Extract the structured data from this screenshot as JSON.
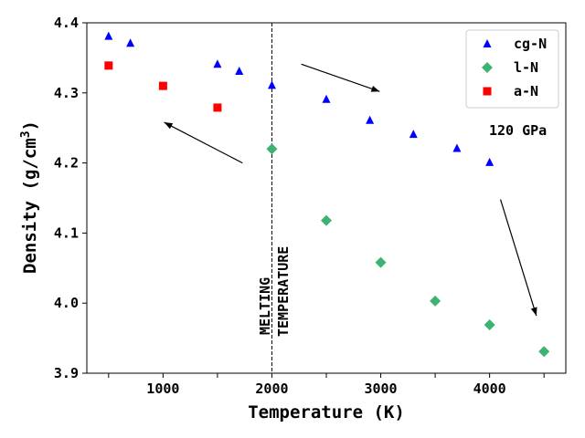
{
  "chart_data": {
    "type": "scatter",
    "title": "",
    "xlabel": "Temperature (K)",
    "ylabel_main": "Density (g/cm",
    "ylabel_sup": "3",
    "ylabel_close": ")",
    "xlim": [
      300,
      4700
    ],
    "ylim": [
      3.9,
      4.4
    ],
    "xticks": [
      500,
      1000,
      1500,
      2000,
      2500,
      3000,
      3500,
      4000,
      4500
    ],
    "xtick_labels": [
      "",
      "1000",
      "",
      "2000",
      "",
      "3000",
      "",
      "4000",
      ""
    ],
    "yticks": [
      3.9,
      4.0,
      4.1,
      4.2,
      4.3,
      4.4
    ],
    "ytick_labels": [
      "3.9",
      "4.0",
      "4.1",
      "4.2",
      "4.3",
      "4.4"
    ],
    "grid": false,
    "legend_position": "top-right",
    "series": [
      {
        "name": "cg-N",
        "marker": "triangle",
        "color": "#0000ff",
        "x": [
          500,
          700,
          1500,
          1700,
          2000,
          2500,
          2900,
          3300,
          3700,
          4000
        ],
        "y": [
          4.381,
          4.371,
          4.341,
          4.331,
          4.311,
          4.291,
          4.261,
          4.241,
          4.221,
          4.201
        ]
      },
      {
        "name": "l-N",
        "marker": "diamond",
        "color": "#3cb371",
        "x": [
          2000,
          2500,
          3000,
          3500,
          4000,
          4500
        ],
        "y": [
          4.22,
          4.118,
          4.058,
          4.003,
          3.969,
          3.931
        ]
      },
      {
        "name": "a-N",
        "marker": "square",
        "color": "#ff0000",
        "x": [
          500,
          1000,
          1500
        ],
        "y": [
          4.339,
          4.31,
          4.279
        ]
      }
    ],
    "vline": {
      "x": 2000,
      "style": "dashed",
      "color": "#000000"
    },
    "annotations": {
      "melting_line1": "MELTING",
      "melting_line2": "TEMPERATURE",
      "pressure": "120 GPa"
    },
    "arrows": [
      {
        "from": [
          1730,
          4.2
        ],
        "to": [
          1010,
          4.258
        ]
      },
      {
        "from": [
          2270,
          4.341
        ],
        "to": [
          2990,
          4.302
        ]
      },
      {
        "from": [
          4100,
          4.148
        ],
        "to": [
          4430,
          3.982
        ]
      }
    ]
  }
}
